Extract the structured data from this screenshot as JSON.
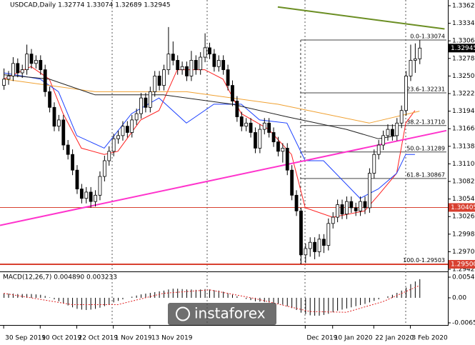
{
  "chart_data": {
    "type": "candlestick",
    "header": "USDCAD,Daily 1.32774 1.33074 1.32689 1.32945",
    "ohlc": [
      [
        1.3235,
        1.3262,
        1.3228,
        1.3245
      ],
      [
        1.3245,
        1.3258,
        1.3236,
        1.325
      ],
      [
        1.325,
        1.328,
        1.3242,
        1.327
      ],
      [
        1.327,
        1.3278,
        1.3248,
        1.3255
      ],
      [
        1.3255,
        1.3268,
        1.3247,
        1.326
      ],
      [
        1.326,
        1.33,
        1.3252,
        1.3285
      ],
      [
        1.3285,
        1.3293,
        1.3262,
        1.327
      ],
      [
        1.327,
        1.3283,
        1.3262,
        1.3275
      ],
      [
        1.3275,
        1.3283,
        1.3252,
        1.326
      ],
      [
        1.326,
        1.3268,
        1.3217,
        1.3225
      ],
      [
        1.3225,
        1.3233,
        1.3192,
        1.32
      ],
      [
        1.32,
        1.3208,
        1.3162,
        1.317
      ],
      [
        1.317,
        1.3188,
        1.3162,
        1.318
      ],
      [
        1.318,
        1.3188,
        1.3132,
        1.314
      ],
      [
        1.314,
        1.3148,
        1.3117,
        1.3125
      ],
      [
        1.3125,
        1.3133,
        1.3092,
        1.31
      ],
      [
        1.31,
        1.3108,
        1.3062,
        1.307
      ],
      [
        1.307,
        1.3078,
        1.3047,
        1.3055
      ],
      [
        1.3055,
        1.3073,
        1.3047,
        1.3065
      ],
      [
        1.3065,
        1.3073,
        1.304,
        1.305
      ],
      [
        1.305,
        1.3068,
        1.3042,
        1.306
      ],
      [
        1.306,
        1.3098,
        1.3052,
        1.309
      ],
      [
        1.309,
        1.3123,
        1.3082,
        1.3115
      ],
      [
        1.3115,
        1.3138,
        1.3107,
        1.313
      ],
      [
        1.313,
        1.3158,
        1.3122,
        1.315
      ],
      [
        1.315,
        1.3163,
        1.3142,
        1.3155
      ],
      [
        1.3155,
        1.3178,
        1.3147,
        1.317
      ],
      [
        1.317,
        1.3178,
        1.3152,
        1.316
      ],
      [
        1.316,
        1.3188,
        1.3152,
        1.318
      ],
      [
        1.318,
        1.3198,
        1.3172,
        1.319
      ],
      [
        1.319,
        1.3223,
        1.3182,
        1.3215
      ],
      [
        1.3215,
        1.3223,
        1.3192,
        1.32
      ],
      [
        1.32,
        1.3233,
        1.3192,
        1.3225
      ],
      [
        1.3225,
        1.3258,
        1.3217,
        1.325
      ],
      [
        1.325,
        1.3258,
        1.3227,
        1.3235
      ],
      [
        1.3235,
        1.3268,
        1.3227,
        1.326
      ],
      [
        1.326,
        1.3328,
        1.3252,
        1.3285
      ],
      [
        1.3285,
        1.3305,
        1.3267,
        1.3275
      ],
      [
        1.3275,
        1.3283,
        1.3252,
        1.326
      ],
      [
        1.326,
        1.3273,
        1.3252,
        1.3265
      ],
      [
        1.3265,
        1.3273,
        1.3242,
        1.325
      ],
      [
        1.325,
        1.329,
        1.3242,
        1.3275
      ],
      [
        1.3275,
        1.3283,
        1.3252,
        1.326
      ],
      [
        1.326,
        1.3288,
        1.3252,
        1.328
      ],
      [
        1.328,
        1.3318,
        1.3272,
        1.3295
      ],
      [
        1.3295,
        1.3303,
        1.3277,
        1.3285
      ],
      [
        1.3285,
        1.3293,
        1.3257,
        1.3265
      ],
      [
        1.3265,
        1.3283,
        1.3257,
        1.3275
      ],
      [
        1.3275,
        1.3283,
        1.3252,
        1.326
      ],
      [
        1.326,
        1.3268,
        1.3227,
        1.3235
      ],
      [
        1.3235,
        1.3243,
        1.3202,
        1.321
      ],
      [
        1.321,
        1.3218,
        1.3177,
        1.3185
      ],
      [
        1.3185,
        1.3193,
        1.3162,
        1.317
      ],
      [
        1.317,
        1.3183,
        1.3162,
        1.3175
      ],
      [
        1.3175,
        1.3183,
        1.3152,
        1.316
      ],
      [
        1.316,
        1.3168,
        1.3127,
        1.3135
      ],
      [
        1.3135,
        1.3173,
        1.3127,
        1.3165
      ],
      [
        1.3165,
        1.3183,
        1.3157,
        1.3175
      ],
      [
        1.3175,
        1.3183,
        1.3152,
        1.316
      ],
      [
        1.316,
        1.3168,
        1.3137,
        1.3145
      ],
      [
        1.3145,
        1.3153,
        1.3122,
        1.313
      ],
      [
        1.313,
        1.3143,
        1.3112,
        1.3135
      ],
      [
        1.3135,
        1.3143,
        1.3092,
        1.31
      ],
      [
        1.31,
        1.3108,
        1.3052,
        1.306
      ],
      [
        1.306,
        1.3068,
        1.3027,
        1.3035
      ],
      [
        1.3035,
        1.304,
        1.295,
        1.2965
      ],
      [
        1.2965,
        1.2983,
        1.2952,
        1.2975
      ],
      [
        1.2975,
        1.2993,
        1.2962,
        1.2985
      ],
      [
        1.2985,
        1.2993,
        1.2958,
        1.297
      ],
      [
        1.297,
        1.2998,
        1.2962,
        1.299
      ],
      [
        1.299,
        1.2998,
        1.2968,
        1.298
      ],
      [
        1.298,
        1.3023,
        1.2972,
        1.3015
      ],
      [
        1.3015,
        1.3033,
        1.3007,
        1.3025
      ],
      [
        1.3025,
        1.3053,
        1.3017,
        1.3045
      ],
      [
        1.3045,
        1.3053,
        1.3022,
        1.303
      ],
      [
        1.303,
        1.3058,
        1.3022,
        1.305
      ],
      [
        1.305,
        1.3058,
        1.3032,
        1.304
      ],
      [
        1.304,
        1.3048,
        1.3027,
        1.3035
      ],
      [
        1.3035,
        1.3058,
        1.3027,
        1.305
      ],
      [
        1.305,
        1.3058,
        1.303,
        1.304
      ],
      [
        1.304,
        1.3103,
        1.3032,
        1.3095
      ],
      [
        1.3095,
        1.3133,
        1.3087,
        1.3125
      ],
      [
        1.3125,
        1.3148,
        1.3117,
        1.314
      ],
      [
        1.314,
        1.3163,
        1.3132,
        1.3155
      ],
      [
        1.3155,
        1.3173,
        1.3147,
        1.3165
      ],
      [
        1.3165,
        1.3173,
        1.3147,
        1.3155
      ],
      [
        1.3155,
        1.3183,
        1.3147,
        1.3175
      ],
      [
        1.3175,
        1.3203,
        1.3167,
        1.3195
      ],
      [
        1.3195,
        1.3258,
        1.3187,
        1.325
      ],
      [
        1.325,
        1.33,
        1.3242,
        1.3275
      ],
      [
        1.3275,
        1.3302,
        1.3255,
        1.32774
      ],
      [
        1.32774,
        1.33074,
        1.32689,
        1.32945
      ]
    ],
    "xlim": [
      -0.8,
      96.9
    ],
    "xticks": [
      {
        "value": 0,
        "label": "30 Sep 2019"
      },
      {
        "value": 8,
        "label": "10 Oct 2019"
      },
      {
        "value": 16,
        "label": "22 Oct 2019"
      },
      {
        "value": 24,
        "label": "1 Nov 2019"
      },
      {
        "value": 32,
        "label": "13 Nov 2019"
      },
      {
        "value": 66,
        "label": "Dec 2019"
      },
      {
        "value": 72,
        "label": "10 Jan 2020"
      },
      {
        "value": 81,
        "label": "22 Jan 2020"
      },
      {
        "value": 89,
        "label": "3 Feb 2020"
      }
    ],
    "ylim": [
      1.2942,
      1.3362
    ],
    "yticks": [
      {
        "value": 1.3362,
        "label": "1.33620"
      },
      {
        "value": 1.3334,
        "label": "1.33340"
      },
      {
        "value": 1.3306,
        "label": "1.33060"
      },
      {
        "value": 1.3278,
        "label": "1.32780"
      },
      {
        "value": 1.325,
        "label": "1.32500"
      },
      {
        "value": 1.3222,
        "label": "1.32220"
      },
      {
        "value": 1.3194,
        "label": "1.31940"
      },
      {
        "value": 1.3166,
        "label": "1.31660"
      },
      {
        "value": 1.3138,
        "label": "1.31380"
      },
      {
        "value": 1.311,
        "label": "1.31100"
      },
      {
        "value": 1.3082,
        "label": "1.30820"
      },
      {
        "value": 1.3054,
        "label": "1.30540"
      },
      {
        "value": 1.3026,
        "label": "1.30260"
      },
      {
        "value": 1.2998,
        "label": "1.29980"
      },
      {
        "value": 1.297,
        "label": "1.29700"
      },
      {
        "value": 1.2942,
        "label": "1.29420"
      }
    ],
    "trendlines": [
      {
        "color": "#6b8e23",
        "x": [
          60,
          96.5
        ],
        "values": [
          1.336,
          1.3325
        ]
      },
      {
        "color": "#ff33cc",
        "x": [
          -0.8,
          96.9
        ],
        "values": [
          1.3012,
          1.3163
        ]
      }
    ],
    "indicator_lines": [
      {
        "color": "#ff2020",
        "x": [
          0,
          6,
          10,
          13,
          17,
          22,
          25,
          30,
          34,
          38,
          44,
          48,
          52,
          58,
          63,
          66,
          72,
          79,
          82,
          86,
          88,
          90
        ],
        "values": [
          1.3245,
          1.3265,
          1.3245,
          1.319,
          1.3135,
          1.3125,
          1.313,
          1.318,
          1.3195,
          1.326,
          1.326,
          1.3245,
          1.319,
          1.3165,
          1.3125,
          1.304,
          1.3025,
          1.3035,
          1.306,
          1.3095,
          1.3175,
          1.3195
        ]
      },
      {
        "color": "#1a3fff",
        "x": [
          0,
          8,
          12,
          16,
          22,
          28,
          34,
          40,
          42,
          46,
          52,
          56,
          62,
          66,
          70,
          78,
          82,
          86,
          88,
          90
        ],
        "values": [
          1.3255,
          1.3245,
          1.3225,
          1.3155,
          1.3135,
          1.319,
          1.3215,
          1.3175,
          1.3185,
          1.3205,
          1.3205,
          1.318,
          1.3175,
          1.3115,
          1.3115,
          1.3055,
          1.307,
          1.3095,
          1.3125,
          1.3125
        ]
      },
      {
        "color": "#f0a030",
        "x": [
          0,
          20,
          40,
          60,
          80,
          91
        ],
        "values": [
          1.3245,
          1.3225,
          1.3225,
          1.3205,
          1.3175,
          1.3194
        ]
      },
      {
        "color": "#202020",
        "x": [
          0,
          10,
          20,
          35,
          50,
          62,
          75,
          82,
          86
        ],
        "values": [
          1.3252,
          1.3245,
          1.322,
          1.322,
          1.3205,
          1.3185,
          1.3165,
          1.315,
          1.3155
        ]
      }
    ],
    "fib_levels": [
      {
        "value": 1.33074,
        "label": "0.0-1.33074"
      },
      {
        "value": 1.32231,
        "label": "23.6-1.32231"
      },
      {
        "value": 1.3171,
        "label": "38.2-1.31710"
      },
      {
        "value": 1.31289,
        "label": "50.0-1.31289"
      },
      {
        "value": 1.30867,
        "label": "61.8-1.30867"
      },
      {
        "value": 1.29503,
        "label": "100.0-1.29503"
      }
    ],
    "fib_start": 65,
    "price_marks": [
      {
        "value": 1.32945,
        "color": "#000000"
      },
      {
        "value": 1.30405,
        "color": "#d84030"
      },
      {
        "value": 1.295,
        "label": "1.29500",
        "color": "#d84030"
      }
    ],
    "macd": {
      "title": "MACD(12,26,7) 0.004890 0.003233",
      "values": [
        0.0012,
        0.0011,
        0.0011,
        0.001,
        0.001,
        0.001,
        0.001,
        0.0009,
        0.0008,
        0.0005,
        0.0001,
        -0.0004,
        -0.0009,
        -0.0015,
        -0.002,
        -0.0025,
        -0.0029,
        -0.0031,
        -0.0032,
        -0.0031,
        -0.0029,
        -0.0026,
        -0.0022,
        -0.0017,
        -0.0012,
        -0.0008,
        -0.0004,
        0.0,
        0.0003,
        0.0006,
        0.0009,
        0.0011,
        0.0013,
        0.0015,
        0.0017,
        0.0019,
        0.0022,
        0.0024,
        0.0024,
        0.0023,
        0.0022,
        0.0022,
        0.0021,
        0.0022,
        0.0023,
        0.0022,
        0.002,
        0.0019,
        0.0016,
        0.0012,
        0.0008,
        0.0004,
        0.0,
        -0.0003,
        -0.0006,
        -0.0009,
        -0.001,
        -0.0011,
        -0.0012,
        -0.0014,
        -0.0016,
        -0.0018,
        -0.0022,
        -0.0027,
        -0.0032,
        -0.0039,
        -0.0043,
        -0.0046,
        -0.0047,
        -0.0047,
        -0.0045,
        -0.0042,
        -0.0038,
        -0.0034,
        -0.0031,
        -0.0028,
        -0.0025,
        -0.0022,
        -0.0019,
        -0.0016,
        -0.0012,
        -0.0008,
        -0.0004,
        0.0,
        0.0004,
        0.0008,
        0.0013,
        0.0019,
        0.0027,
        0.0036,
        0.0043,
        0.0049
      ],
      "signal_x": [
        0,
        15,
        25,
        35,
        45,
        55,
        67,
        75,
        83,
        91
      ],
      "signal": [
        0.0012,
        -0.0018,
        -0.0018,
        0.0012,
        0.0021,
        -0.0002,
        -0.0036,
        -0.0038,
        -0.001,
        0.003233
      ],
      "ylim": [
        -0.006585,
        0.005439
      ],
      "yticks": [
        0.005439,
        {
          "value": 0,
          "label": "0.00"
        },
        -0.006585
      ]
    },
    "watermark": "instaforex"
  }
}
